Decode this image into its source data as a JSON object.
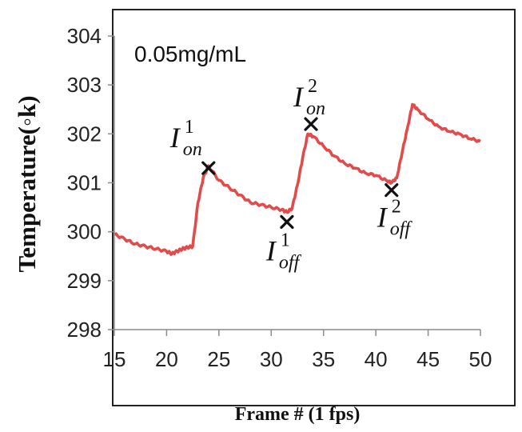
{
  "chart_data": {
    "type": "line",
    "xlabel": "Frame # (1 fps)",
    "ylabel": "Temperature(◦k)",
    "annotation": "0.05mg/mL",
    "xlim": [
      15,
      50
    ],
    "ylim": [
      298,
      304
    ],
    "xticks": [
      "15",
      "20",
      "25",
      "30",
      "35",
      "40",
      "45",
      "50"
    ],
    "yticks": [
      "298",
      "299",
      "300",
      "301",
      "302",
      "303",
      "304"
    ],
    "line_color": "#e04b4b",
    "series": [
      {
        "x": [
          15,
          16,
          17,
          18,
          19,
          20,
          20.5,
          21,
          21.5,
          22,
          22.5,
          23,
          23.5,
          24,
          25,
          26,
          27,
          28,
          29,
          30,
          31,
          31.5,
          32,
          32.5,
          33,
          33.5,
          34,
          35,
          36,
          37,
          38,
          39,
          40,
          41,
          41.5,
          42,
          42.5,
          43,
          43.5,
          44,
          45,
          46,
          47,
          48,
          49,
          50
        ],
        "y": [
          299.95,
          299.85,
          299.75,
          299.7,
          299.65,
          299.6,
          299.55,
          299.6,
          299.65,
          299.68,
          299.7,
          300.6,
          301.1,
          301.35,
          301.05,
          300.9,
          300.75,
          300.6,
          300.55,
          300.5,
          300.45,
          300.4,
          300.48,
          300.95,
          301.5,
          302.0,
          301.95,
          301.75,
          301.55,
          301.4,
          301.3,
          301.2,
          301.15,
          301.05,
          301.0,
          301.1,
          301.6,
          302.1,
          302.6,
          302.5,
          302.3,
          302.15,
          302.05,
          302.0,
          301.9,
          301.85
        ]
      }
    ],
    "markers": [
      {
        "label": "I",
        "sub": "on",
        "sup": "1",
        "x": 24,
        "y": 301.3
      },
      {
        "label": "I",
        "sub": "off",
        "sup": "1",
        "x": 31.5,
        "y": 300.2
      },
      {
        "label": "I",
        "sub": "on",
        "sup": "2",
        "x": 33.8,
        "y": 302.2
      },
      {
        "label": "I",
        "sub": "off",
        "sup": "2",
        "x": 41.5,
        "y": 300.85
      }
    ]
  }
}
